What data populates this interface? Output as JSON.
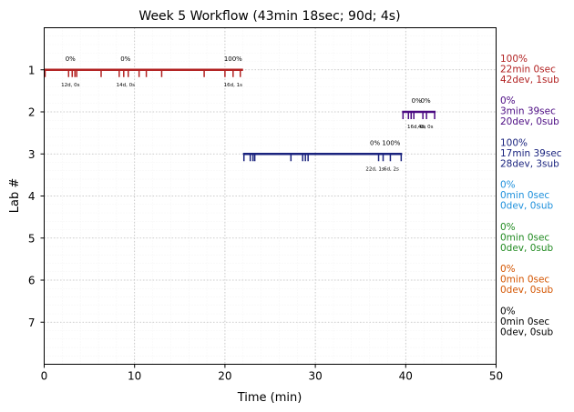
{
  "chart_data": {
    "type": "timeline",
    "title": "Week 5 Workflow (43min 18sec; 90d; 4s)",
    "xlabel": "Time (min)",
    "ylabel": "Lab #",
    "xlim": [
      0,
      50
    ],
    "ylim": [
      8,
      0
    ],
    "x_ticks": [
      "0",
      "10",
      "20",
      "30",
      "40",
      "50"
    ],
    "y_ticks": [
      "1",
      "2",
      "3",
      "4",
      "5",
      "6",
      "7"
    ],
    "grid": true,
    "labs": [
      {
        "lab": 1,
        "color": "#b22222",
        "segment": [
          0,
          22
        ],
        "ticks": [
          0.1,
          2.7,
          3.1,
          3.4,
          3.6,
          6.3,
          8.3,
          8.8,
          9.3,
          10.5,
          11.3,
          13.0,
          17.7,
          20.0,
          20.9,
          21.7
        ],
        "annotations": [
          {
            "x": 2.9,
            "above": "0%",
            "below": "12d, 0s"
          },
          {
            "x": 9.0,
            "above": "0%",
            "below": "14d, 0s"
          },
          {
            "x": 20.9,
            "above": "100%",
            "below": "16d, 1s"
          }
        ],
        "summary": [
          "100%",
          "22min 0sec",
          "42dev, 1sub"
        ]
      },
      {
        "lab": 2,
        "color": "#4b0a82",
        "segment": [
          39.6,
          43.3
        ],
        "ticks": [
          39.7,
          40.3,
          40.6,
          40.9,
          41.9,
          42.3,
          43.2
        ],
        "annotations": [
          {
            "x": 41.2,
            "above": "0%",
            "below": "16d, 0s"
          },
          {
            "x": 42.2,
            "above": "0%",
            "below": "4d, 0s"
          }
        ],
        "summary": [
          "0%",
          "3min 39sec",
          "20dev, 0sub"
        ]
      },
      {
        "lab": 3,
        "color": "#1a237e",
        "segment": [
          22.0,
          39.6
        ],
        "ticks": [
          22.1,
          22.8,
          23.1,
          23.3,
          27.3,
          28.6,
          28.9,
          29.2,
          37.0,
          37.5,
          38.3,
          39.5
        ],
        "annotations": [
          {
            "x": 36.6,
            "above": "0%",
            "below": "22d, 1s"
          },
          {
            "x": 38.4,
            "above": "100%",
            "below": "6d, 2s"
          }
        ],
        "summary": [
          "100%",
          "17min 39sec",
          "28dev, 3sub"
        ]
      },
      {
        "lab": 4,
        "color": "#1e90dc",
        "segment": null,
        "ticks": [],
        "annotations": [],
        "summary": [
          "0%",
          "0min 0sec",
          "0dev, 0sub"
        ]
      },
      {
        "lab": 5,
        "color": "#228b22",
        "segment": null,
        "ticks": [],
        "annotations": [],
        "summary": [
          "0%",
          "0min 0sec",
          "0dev, 0sub"
        ]
      },
      {
        "lab": 6,
        "color": "#d45500",
        "segment": null,
        "ticks": [],
        "annotations": [],
        "summary": [
          "0%",
          "0min 0sec",
          "0dev, 0sub"
        ]
      },
      {
        "lab": 7,
        "color": "#000000",
        "segment": null,
        "ticks": [],
        "annotations": [],
        "summary": [
          "0%",
          "0min 0sec",
          "0dev, 0sub"
        ]
      }
    ]
  }
}
